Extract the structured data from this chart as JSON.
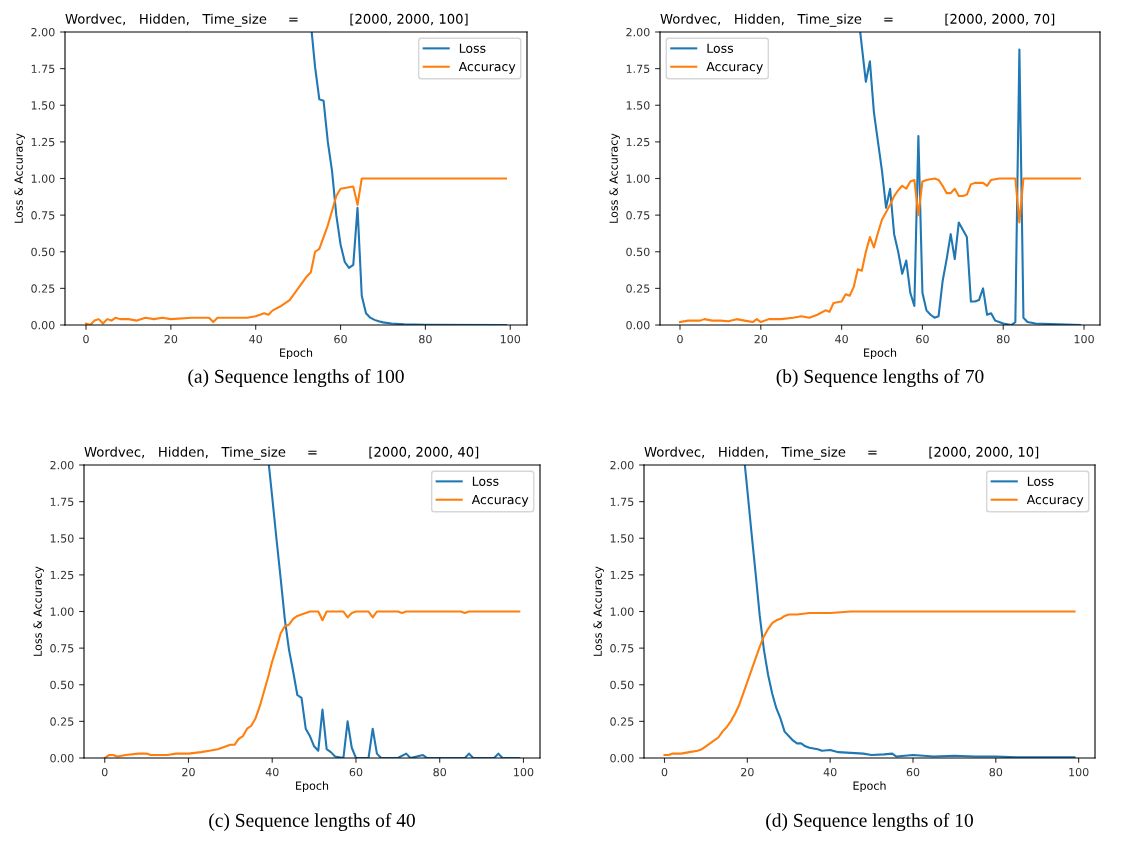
{
  "chart_data": [
    {
      "type": "line",
      "title": "Wordvec,   Hidden,   Time_size     =            [2000, 2000, 100]",
      "xlabel": "Epoch",
      "ylabel": "Loss & Accuracy",
      "annotations": [
        "(a) Sequence lengths of 100"
      ],
      "legend": "top right",
      "xlim": [
        -4.95,
        103.95
      ],
      "xticks": [
        0,
        20,
        40,
        60,
        80,
        100
      ],
      "ylim": [
        0,
        2
      ],
      "yticks": [
        {
          "value": 0,
          "label": "0.00"
        },
        {
          "value": 0.25,
          "label": "0.25"
        },
        {
          "value": 0.5,
          "label": "0.50"
        },
        {
          "value": 0.75,
          "label": "0.75"
        },
        {
          "value": 1,
          "label": "1.00"
        },
        {
          "value": 1.25,
          "label": "1.25"
        },
        {
          "value": 1.5,
          "label": "1.50"
        },
        {
          "value": 1.75,
          "label": "1.75"
        },
        {
          "value": 2,
          "label": "2.00"
        }
      ],
      "series": [
        {
          "name": "Loss",
          "color": "#1f77b4",
          "x": [
            53.2,
            54,
            55,
            56,
            57,
            58,
            59,
            60,
            61,
            62,
            63,
            64,
            65,
            66,
            67,
            68,
            69,
            70,
            72,
            75,
            80,
            99
          ],
          "values": [
            2.0,
            1.76,
            1.54,
            1.53,
            1.25,
            1.05,
            0.75,
            0.55,
            0.43,
            0.39,
            0.41,
            0.8,
            0.2,
            0.08,
            0.05,
            0.035,
            0.025,
            0.018,
            0.01,
            0.005,
            0.002,
            0.0
          ]
        },
        {
          "name": "Accuracy",
          "color": "#ff7f0e",
          "x": [
            0,
            1,
            2,
            3,
            4,
            5,
            6,
            7,
            8,
            10,
            12,
            14,
            16,
            18,
            20,
            25,
            29,
            30,
            31,
            35,
            38,
            40,
            42,
            43,
            44,
            46,
            48,
            50,
            52,
            53,
            54,
            55,
            56,
            57,
            58,
            59,
            60,
            61,
            62,
            63,
            64,
            65,
            99
          ],
          "values": [
            0.01,
            0.0,
            0.03,
            0.04,
            0.01,
            0.04,
            0.03,
            0.05,
            0.04,
            0.04,
            0.03,
            0.05,
            0.04,
            0.05,
            0.04,
            0.05,
            0.05,
            0.02,
            0.05,
            0.05,
            0.05,
            0.06,
            0.08,
            0.07,
            0.1,
            0.13,
            0.17,
            0.25,
            0.33,
            0.36,
            0.5,
            0.52,
            0.6,
            0.68,
            0.78,
            0.88,
            0.93,
            0.935,
            0.94,
            0.945,
            0.82,
            1.0,
            1.0
          ]
        }
      ]
    },
    {
      "type": "line",
      "title": "Wordvec,   Hidden,   Time_size     =            [2000, 2000, 70]",
      "xlabel": "Epoch",
      "ylabel": "Loss & Accuracy",
      "annotations": [
        "(b) Sequence lengths of 70"
      ],
      "legend": "top left",
      "xlim": [
        -4.95,
        103.95
      ],
      "xticks": [
        0,
        20,
        40,
        60,
        80,
        100
      ],
      "ylim": [
        0,
        2
      ],
      "yticks": [
        {
          "value": 0,
          "label": "0.00"
        },
        {
          "value": 0.25,
          "label": "0.25"
        },
        {
          "value": 0.5,
          "label": "0.50"
        },
        {
          "value": 0.75,
          "label": "0.75"
        },
        {
          "value": 1,
          "label": "1.00"
        },
        {
          "value": 1.25,
          "label": "1.25"
        },
        {
          "value": 1.5,
          "label": "1.50"
        },
        {
          "value": 1.75,
          "label": "1.75"
        },
        {
          "value": 2,
          "label": "2.00"
        }
      ],
      "series": [
        {
          "name": "Loss",
          "color": "#1f77b4",
          "x": [
            44.6,
            46,
            47,
            48,
            49,
            50,
            51,
            52,
            53,
            54,
            55,
            56,
            57,
            58,
            59,
            60,
            61,
            62,
            63,
            64,
            65,
            66,
            67,
            68,
            69,
            70,
            71,
            72,
            73,
            74,
            75,
            76,
            77,
            78,
            79,
            80,
            82,
            83,
            84,
            85,
            86,
            88,
            99
          ],
          "values": [
            2.0,
            1.66,
            1.8,
            1.45,
            1.25,
            1.05,
            0.8,
            0.93,
            0.62,
            0.5,
            0.35,
            0.44,
            0.22,
            0.13,
            1.29,
            0.22,
            0.1,
            0.07,
            0.05,
            0.06,
            0.3,
            0.45,
            0.62,
            0.45,
            0.7,
            0.65,
            0.6,
            0.16,
            0.16,
            0.17,
            0.25,
            0.07,
            0.08,
            0.03,
            0.02,
            0.01,
            0.0,
            0.02,
            1.88,
            0.05,
            0.02,
            0.01,
            0.0
          ]
        },
        {
          "name": "Accuracy",
          "color": "#ff7f0e",
          "x": [
            0,
            2,
            5,
            6,
            8,
            10,
            12,
            14,
            16,
            18,
            19,
            20,
            22,
            25,
            28,
            30,
            32,
            34,
            36,
            37,
            38,
            40,
            41,
            42,
            43,
            44,
            45,
            46,
            47,
            48,
            49,
            50,
            51,
            52,
            53,
            54,
            55,
            56,
            57,
            58,
            59,
            60,
            61,
            63,
            64,
            65,
            66,
            67,
            68,
            69,
            70,
            71,
            72,
            73,
            75,
            76,
            77,
            79,
            83,
            84,
            85,
            99
          ],
          "values": [
            0.02,
            0.03,
            0.03,
            0.04,
            0.03,
            0.03,
            0.025,
            0.04,
            0.03,
            0.02,
            0.04,
            0.02,
            0.04,
            0.04,
            0.05,
            0.06,
            0.05,
            0.07,
            0.1,
            0.09,
            0.15,
            0.16,
            0.21,
            0.2,
            0.26,
            0.38,
            0.37,
            0.5,
            0.6,
            0.53,
            0.63,
            0.72,
            0.77,
            0.82,
            0.88,
            0.92,
            0.95,
            0.93,
            0.98,
            0.99,
            0.75,
            0.98,
            0.99,
            1.0,
            0.99,
            0.95,
            0.9,
            0.9,
            0.93,
            0.88,
            0.88,
            0.89,
            0.96,
            0.97,
            0.97,
            0.95,
            0.99,
            1.0,
            1.0,
            0.7,
            1.0,
            1.0
          ]
        }
      ]
    },
    {
      "type": "line",
      "title": "Wordvec,   Hidden,   Time_size     =            [2000, 2000, 40]",
      "xlabel": "Epoch",
      "ylabel": "Loss & Accuracy",
      "annotations": [
        "(c) Sequence lengths of 40"
      ],
      "legend": "top right",
      "xlim": [
        -4.95,
        103.95
      ],
      "xticks": [
        0,
        20,
        40,
        60,
        80,
        100
      ],
      "ylim": [
        0,
        2
      ],
      "yticks": [
        {
          "value": 0,
          "label": "0.00"
        },
        {
          "value": 0.25,
          "label": "0.25"
        },
        {
          "value": 0.5,
          "label": "0.50"
        },
        {
          "value": 0.75,
          "label": "0.75"
        },
        {
          "value": 1,
          "label": "1.00"
        },
        {
          "value": 1.25,
          "label": "1.25"
        },
        {
          "value": 1.5,
          "label": "1.50"
        },
        {
          "value": 1.75,
          "label": "1.75"
        },
        {
          "value": 2,
          "label": "2.00"
        }
      ],
      "series": [
        {
          "name": "Loss",
          "color": "#1f77b4",
          "x": [
            39.2,
            40,
            41,
            42,
            43,
            44,
            45,
            46,
            47,
            48,
            49,
            50,
            51,
            52,
            53,
            54,
            55,
            57,
            58,
            59,
            60,
            63,
            64,
            65,
            66,
            70,
            72,
            73,
            76,
            77,
            86,
            87,
            88,
            93,
            94,
            95,
            99
          ],
          "values": [
            2.0,
            1.78,
            1.5,
            1.23,
            0.95,
            0.74,
            0.59,
            0.43,
            0.41,
            0.2,
            0.15,
            0.08,
            0.05,
            0.33,
            0.06,
            0.04,
            0.01,
            0.0,
            0.25,
            0.07,
            0.0,
            0.0,
            0.2,
            0.03,
            0.0,
            0.0,
            0.03,
            0.0,
            0.02,
            0.0,
            0.0,
            0.03,
            0.0,
            0.0,
            0.03,
            0.0,
            0.0
          ]
        },
        {
          "name": "Accuracy",
          "color": "#ff7f0e",
          "x": [
            0,
            1,
            2,
            3,
            5,
            8,
            10,
            11,
            13,
            15,
            17,
            20,
            23,
            25,
            27,
            29,
            30,
            31,
            32,
            33,
            34,
            35,
            36,
            37,
            38,
            39,
            40,
            41,
            42,
            43,
            44,
            45,
            46,
            47,
            48,
            49,
            51,
            52,
            53,
            57,
            58,
            59,
            60,
            63,
            64,
            65,
            70,
            71,
            72,
            85,
            86,
            87,
            99
          ],
          "values": [
            0.0,
            0.02,
            0.02,
            0.01,
            0.02,
            0.03,
            0.03,
            0.02,
            0.02,
            0.02,
            0.03,
            0.03,
            0.04,
            0.05,
            0.06,
            0.08,
            0.09,
            0.09,
            0.13,
            0.15,
            0.2,
            0.22,
            0.27,
            0.35,
            0.45,
            0.55,
            0.66,
            0.75,
            0.85,
            0.9,
            0.91,
            0.95,
            0.97,
            0.98,
            0.99,
            1.0,
            1.0,
            0.94,
            1.0,
            1.0,
            0.96,
            0.99,
            1.0,
            1.0,
            0.96,
            1.0,
            1.0,
            0.99,
            1.0,
            1.0,
            0.99,
            1.0,
            1.0
          ]
        }
      ]
    },
    {
      "type": "line",
      "title": "Wordvec,   Hidden,   Time_size     =            [2000, 2000, 10]",
      "xlabel": "Epoch",
      "ylabel": "Loss & Accuracy",
      "annotations": [
        "(d) Sequence lengths of 10"
      ],
      "legend": "top right",
      "xlim": [
        -4.95,
        103.95
      ],
      "xticks": [
        0,
        20,
        40,
        60,
        80,
        100
      ],
      "ylim": [
        0,
        2
      ],
      "yticks": [
        {
          "value": 0,
          "label": "0.00"
        },
        {
          "value": 0.25,
          "label": "0.25"
        },
        {
          "value": 0.5,
          "label": "0.50"
        },
        {
          "value": 0.75,
          "label": "0.75"
        },
        {
          "value": 1,
          "label": "1.00"
        },
        {
          "value": 1.25,
          "label": "1.25"
        },
        {
          "value": 1.5,
          "label": "1.50"
        },
        {
          "value": 1.75,
          "label": "1.75"
        },
        {
          "value": 2,
          "label": "2.00"
        }
      ],
      "series": [
        {
          "name": "Loss",
          "color": "#1f77b4",
          "x": [
            19.4,
            20,
            21,
            22,
            23,
            24,
            25,
            26,
            27,
            28,
            29,
            30,
            31,
            32,
            33,
            34,
            35,
            37,
            38,
            40,
            42,
            45,
            48,
            50,
            53,
            55,
            56,
            60,
            65,
            70,
            75,
            80,
            85,
            90,
            99
          ],
          "values": [
            2.0,
            1.83,
            1.54,
            1.26,
            0.97,
            0.74,
            0.57,
            0.44,
            0.34,
            0.27,
            0.18,
            0.15,
            0.12,
            0.1,
            0.1,
            0.08,
            0.07,
            0.06,
            0.05,
            0.055,
            0.04,
            0.035,
            0.03,
            0.02,
            0.025,
            0.03,
            0.01,
            0.02,
            0.01,
            0.015,
            0.01,
            0.01,
            0.005,
            0.005,
            0.005
          ]
        },
        {
          "name": "Accuracy",
          "color": "#ff7f0e",
          "x": [
            0,
            1,
            2,
            4,
            6,
            8,
            9,
            10,
            11,
            12,
            13,
            14,
            15,
            16,
            17,
            18,
            19,
            20,
            21,
            22,
            23,
            24,
            25,
            26,
            27,
            28,
            29,
            30,
            32,
            35,
            40,
            45,
            99
          ],
          "values": [
            0.02,
            0.02,
            0.03,
            0.03,
            0.04,
            0.05,
            0.06,
            0.08,
            0.1,
            0.12,
            0.14,
            0.18,
            0.21,
            0.25,
            0.3,
            0.36,
            0.44,
            0.52,
            0.6,
            0.68,
            0.76,
            0.83,
            0.88,
            0.92,
            0.94,
            0.95,
            0.97,
            0.98,
            0.98,
            0.99,
            0.99,
            1.0,
            1.0
          ]
        }
      ]
    }
  ]
}
